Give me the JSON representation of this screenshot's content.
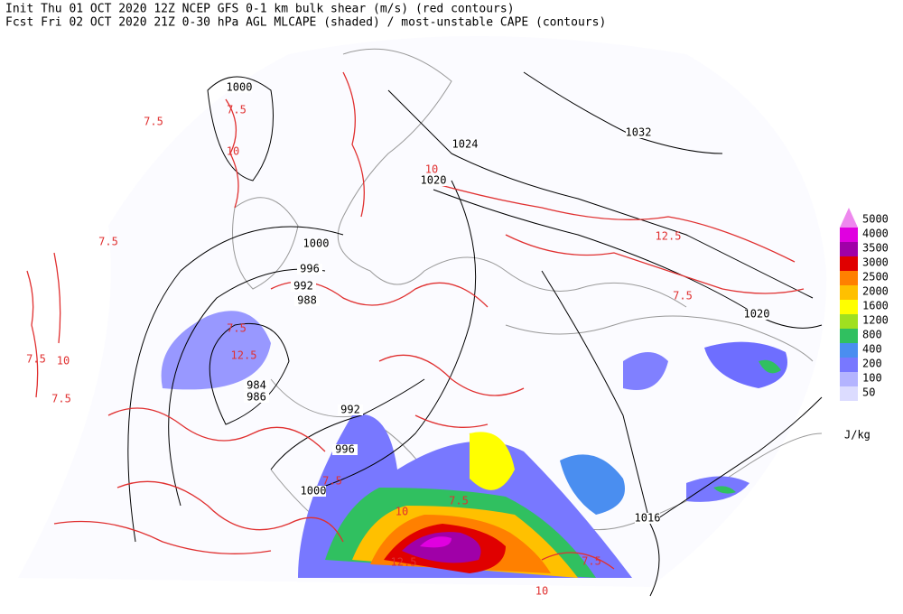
{
  "header": {
    "line1": "Init  Thu 01 OCT 2020 12Z  NCEP GFS 0-1 km bulk shear (m/s) (red contours)",
    "line2": "Fcst Fri 02 OCT 2020 21Z   0-30 hPa AGL MLCAPE (shaded) / most-unstable CAPE (contours)"
  },
  "legend": {
    "levels": [
      "5000",
      "4000",
      "3500",
      "3000",
      "2500",
      "2000",
      "1600",
      "1200",
      "800",
      "400",
      "200",
      "100",
      "50"
    ],
    "colors": [
      "#ee88ee",
      "#e000e0",
      "#a000a8",
      "#e00000",
      "#ff8000",
      "#ffc000",
      "#ffff00",
      "#a0e020",
      "#30c060",
      "#4a8ef0",
      "#7878ff",
      "#b4b4ff",
      "#dcdcff"
    ],
    "unit": "J/kg"
  },
  "pressure_labels": [
    "1000",
    "1024",
    "1020",
    "1032",
    "1000",
    "996",
    "992",
    "988",
    "984",
    "986",
    "992",
    "996",
    "1000",
    "1016",
    "1020"
  ],
  "shear_labels": [
    "7.5",
    "10",
    "7.5",
    "7.5",
    "10",
    "7.5",
    "7.5",
    "10",
    "12.5",
    "12.5",
    "7.5",
    "10",
    "7.5",
    "12.5",
    "7.5",
    "10",
    "7.5",
    "7.5"
  ]
}
